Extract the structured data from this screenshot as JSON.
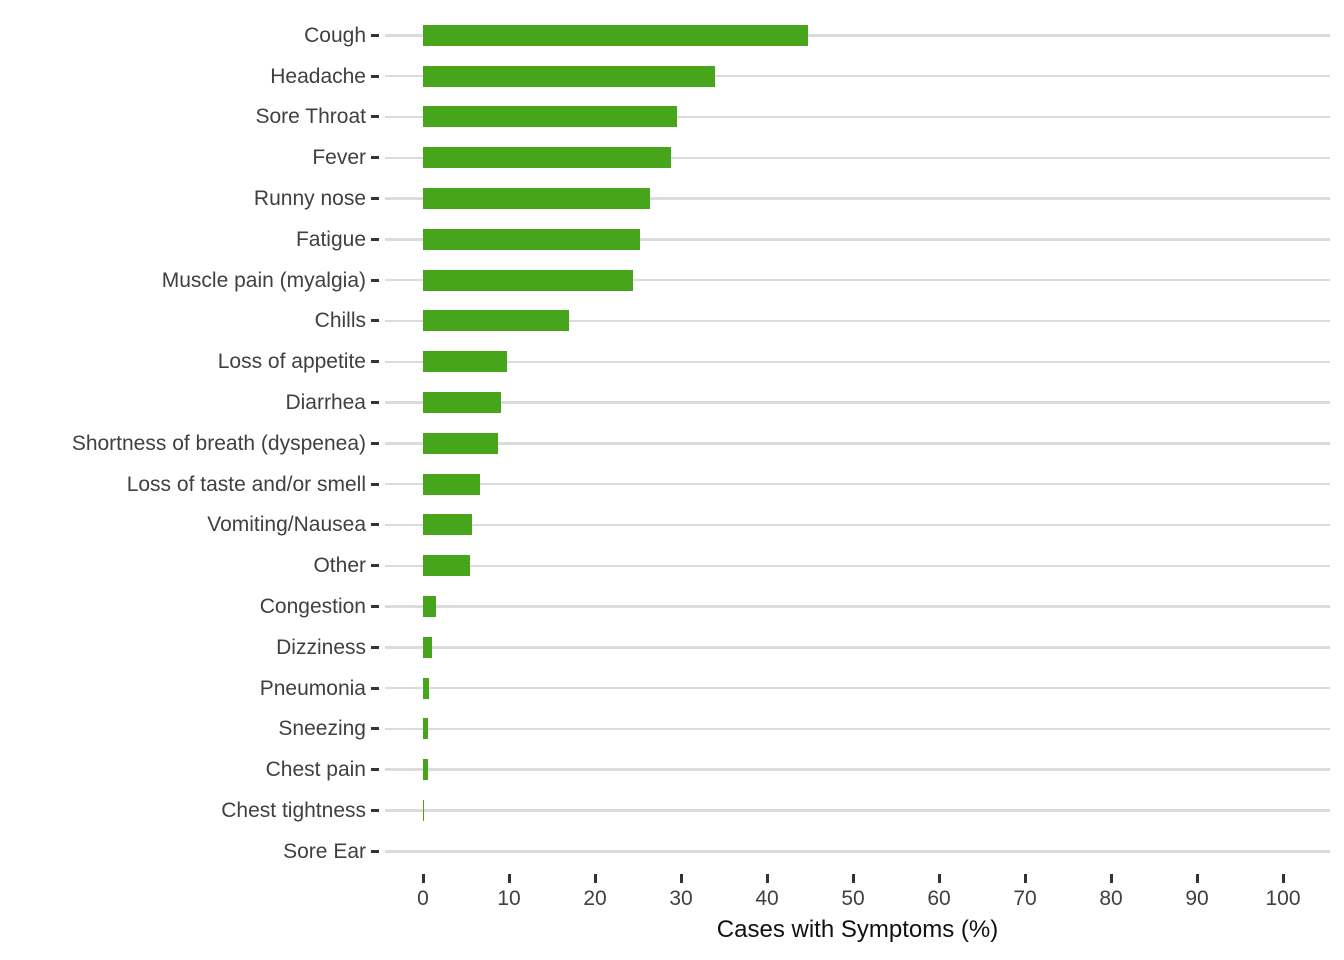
{
  "chart_data": {
    "type": "bar",
    "orientation": "horizontal",
    "title": "",
    "xlabel": "Cases with Symptoms (%)",
    "ylabel": "",
    "xlim": [
      0,
      100
    ],
    "x_ticks": [
      0,
      10,
      20,
      30,
      40,
      50,
      60,
      70,
      80,
      90,
      100
    ],
    "grid": "horizontal-category-lines-only",
    "legend": "none",
    "categories": [
      "Cough",
      "Headache",
      "Sore Throat",
      "Fever",
      "Runny nose",
      "Fatigue",
      "Muscle pain (myalgia)",
      "Chills",
      "Loss of appetite",
      "Diarrhea",
      "Shortness of breath (dyspenea)",
      "Loss of taste and/or smell",
      "Vomiting/Nausea",
      "Other",
      "Congestion",
      "Dizziness",
      "Pneumonia",
      "Sneezing",
      "Chest pain",
      "Chest tightness",
      "Sore Ear"
    ],
    "values": [
      44.8,
      33.9,
      29.5,
      28.8,
      26.4,
      25.2,
      24.4,
      17.0,
      9.8,
      9.1,
      8.7,
      6.6,
      5.7,
      5.5,
      1.5,
      1.0,
      0.75,
      0.55,
      0.55,
      0.1,
      0
    ],
    "style": {
      "bar_color": "#47A51C",
      "gridline_color": "#dbdbdb",
      "axis_text_color": "#404040",
      "axis_title_color": "#111111",
      "tick_mark_color": "#333333",
      "background_color": "#ffffff"
    }
  }
}
